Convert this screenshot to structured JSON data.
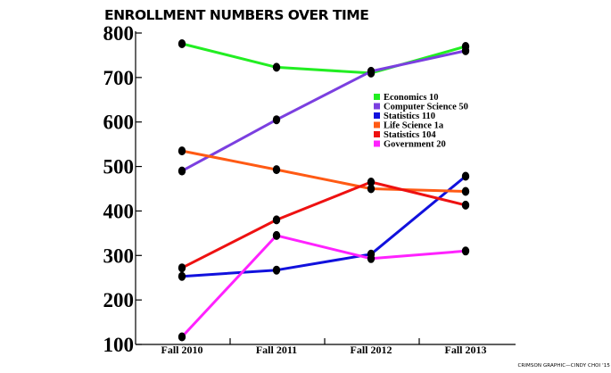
{
  "chart_data": {
    "type": "line",
    "title": "ENROLLMENT NUMBERS OVER TIME",
    "xlabel": "",
    "ylabel": "",
    "categories": [
      "Fall 2010",
      "Fall 2011",
      "Fall 2012",
      "Fall 2013"
    ],
    "ylim": [
      100,
      800
    ],
    "yticks": [
      100,
      200,
      300,
      400,
      500,
      600,
      700,
      800
    ],
    "grid": false,
    "legend_position": "right-center",
    "series": [
      {
        "name": "Economics 10",
        "color": "#22ee22",
        "values": [
          776,
          723,
          710,
          770
        ]
      },
      {
        "name": "Computer Science 50",
        "color": "#7b3fe0",
        "values": [
          490,
          605,
          714,
          760
        ]
      },
      {
        "name": "Statistics 110",
        "color": "#1111dd",
        "values": [
          253,
          267,
          303,
          478
        ]
      },
      {
        "name": "Life Science 1a",
        "color": "#ff5a14",
        "values": [
          535,
          493,
          450,
          444
        ]
      },
      {
        "name": "Statistics 104",
        "color": "#ee1111",
        "values": [
          272,
          380,
          465,
          413
        ]
      },
      {
        "name": "Government 20",
        "color": "#ff22ff",
        "values": [
          117,
          345,
          293,
          310
        ]
      }
    ]
  },
  "credit": "CRIMSON GRAPHIC—CINDY CHOI '15"
}
